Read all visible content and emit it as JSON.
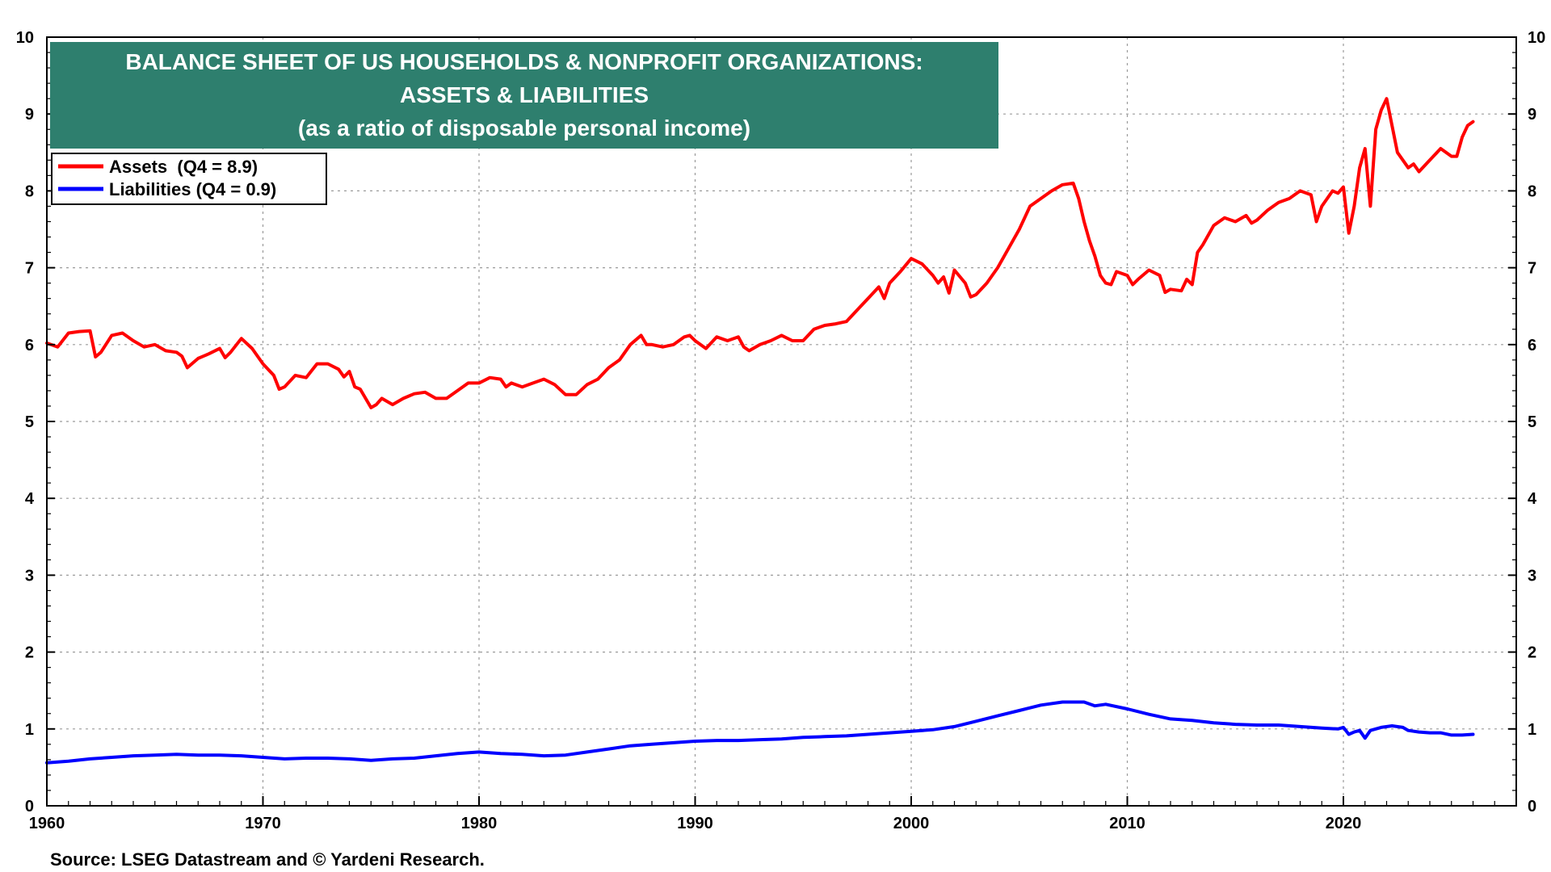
{
  "chart_data": {
    "type": "line",
    "title_lines": [
      "BALANCE SHEET OF US HOUSEHOLDS & NONPROFIT ORGANIZATIONS:",
      "ASSETS & LIABILITIES",
      "(as a ratio of disposable personal income)"
    ],
    "title_bg_color": "#2e7f6e",
    "xlim": [
      1960,
      2028
    ],
    "ylim": [
      0,
      10
    ],
    "x_ticks": [
      "1960",
      "1970",
      "1980",
      "1990",
      "2000",
      "2010",
      "2020"
    ],
    "y_ticks": [
      "0",
      "1",
      "2",
      "3",
      "4",
      "5",
      "6",
      "7",
      "8",
      "9",
      "10"
    ],
    "grid": true,
    "legend_position": "top-left",
    "source": "Source: LSEG Datastream and © Yardeni Research.",
    "series": [
      {
        "name": "Assets  (Q4 = 8.9)",
        "color": "#ff0000",
        "points": [
          [
            1960.0,
            6.02
          ],
          [
            1960.5,
            5.97
          ],
          [
            1961.0,
            6.15
          ],
          [
            1961.5,
            6.17
          ],
          [
            1962.0,
            6.18
          ],
          [
            1962.25,
            5.84
          ],
          [
            1962.5,
            5.9
          ],
          [
            1963.0,
            6.12
          ],
          [
            1963.5,
            6.15
          ],
          [
            1964.0,
            6.05
          ],
          [
            1964.5,
            5.97
          ],
          [
            1965.0,
            6.0
          ],
          [
            1965.5,
            5.92
          ],
          [
            1966.0,
            5.9
          ],
          [
            1966.25,
            5.85
          ],
          [
            1966.5,
            5.7
          ],
          [
            1967.0,
            5.82
          ],
          [
            1967.5,
            5.88
          ],
          [
            1968.0,
            5.95
          ],
          [
            1968.25,
            5.83
          ],
          [
            1968.5,
            5.9
          ],
          [
            1969.0,
            6.08
          ],
          [
            1969.5,
            5.95
          ],
          [
            1970.0,
            5.75
          ],
          [
            1970.5,
            5.6
          ],
          [
            1970.75,
            5.42
          ],
          [
            1971.0,
            5.45
          ],
          [
            1971.5,
            5.6
          ],
          [
            1972.0,
            5.57
          ],
          [
            1972.5,
            5.75
          ],
          [
            1973.0,
            5.75
          ],
          [
            1973.5,
            5.68
          ],
          [
            1973.75,
            5.58
          ],
          [
            1974.0,
            5.65
          ],
          [
            1974.25,
            5.45
          ],
          [
            1974.5,
            5.42
          ],
          [
            1975.0,
            5.18
          ],
          [
            1975.25,
            5.22
          ],
          [
            1975.5,
            5.3
          ],
          [
            1976.0,
            5.22
          ],
          [
            1976.5,
            5.3
          ],
          [
            1977.0,
            5.36
          ],
          [
            1977.5,
            5.38
          ],
          [
            1978.0,
            5.3
          ],
          [
            1978.5,
            5.3
          ],
          [
            1979.0,
            5.4
          ],
          [
            1979.5,
            5.5
          ],
          [
            1980.0,
            5.5
          ],
          [
            1980.5,
            5.57
          ],
          [
            1981.0,
            5.55
          ],
          [
            1981.25,
            5.45
          ],
          [
            1981.5,
            5.5
          ],
          [
            1982.0,
            5.45
          ],
          [
            1982.5,
            5.5
          ],
          [
            1983.0,
            5.55
          ],
          [
            1983.5,
            5.48
          ],
          [
            1984.0,
            5.35
          ],
          [
            1984.5,
            5.35
          ],
          [
            1985.0,
            5.48
          ],
          [
            1985.5,
            5.55
          ],
          [
            1986.0,
            5.7
          ],
          [
            1986.5,
            5.8
          ],
          [
            1987.0,
            6.0
          ],
          [
            1987.5,
            6.12
          ],
          [
            1987.75,
            6.0
          ],
          [
            1988.0,
            6.0
          ],
          [
            1988.5,
            5.97
          ],
          [
            1989.0,
            6.0
          ],
          [
            1989.5,
            6.1
          ],
          [
            1989.75,
            6.12
          ],
          [
            1990.0,
            6.05
          ],
          [
            1990.5,
            5.95
          ],
          [
            1991.0,
            6.1
          ],
          [
            1991.5,
            6.05
          ],
          [
            1992.0,
            6.1
          ],
          [
            1992.25,
            5.97
          ],
          [
            1992.5,
            5.92
          ],
          [
            1993.0,
            6.0
          ],
          [
            1993.5,
            6.05
          ],
          [
            1994.0,
            6.12
          ],
          [
            1994.5,
            6.05
          ],
          [
            1995.0,
            6.05
          ],
          [
            1995.5,
            6.2
          ],
          [
            1996.0,
            6.25
          ],
          [
            1996.5,
            6.27
          ],
          [
            1997.0,
            6.3
          ],
          [
            1997.5,
            6.45
          ],
          [
            1998.0,
            6.6
          ],
          [
            1998.5,
            6.75
          ],
          [
            1998.75,
            6.6
          ],
          [
            1999.0,
            6.8
          ],
          [
            1999.5,
            6.95
          ],
          [
            2000.0,
            7.12
          ],
          [
            2000.5,
            7.05
          ],
          [
            2001.0,
            6.9
          ],
          [
            2001.25,
            6.8
          ],
          [
            2001.5,
            6.88
          ],
          [
            2001.75,
            6.67
          ],
          [
            2002.0,
            6.97
          ],
          [
            2002.5,
            6.8
          ],
          [
            2002.75,
            6.62
          ],
          [
            2003.0,
            6.65
          ],
          [
            2003.5,
            6.8
          ],
          [
            2004.0,
            7.0
          ],
          [
            2004.5,
            7.25
          ],
          [
            2005.0,
            7.5
          ],
          [
            2005.5,
            7.8
          ],
          [
            2006.0,
            7.9
          ],
          [
            2006.5,
            8.0
          ],
          [
            2007.0,
            8.08
          ],
          [
            2007.5,
            8.1
          ],
          [
            2007.75,
            7.9
          ],
          [
            2008.0,
            7.6
          ],
          [
            2008.25,
            7.35
          ],
          [
            2008.5,
            7.15
          ],
          [
            2008.75,
            6.9
          ],
          [
            2009.0,
            6.8
          ],
          [
            2009.25,
            6.78
          ],
          [
            2009.5,
            6.95
          ],
          [
            2010.0,
            6.9
          ],
          [
            2010.25,
            6.78
          ],
          [
            2010.5,
            6.85
          ],
          [
            2011.0,
            6.97
          ],
          [
            2011.5,
            6.9
          ],
          [
            2011.75,
            6.68
          ],
          [
            2012.0,
            6.72
          ],
          [
            2012.5,
            6.7
          ],
          [
            2012.75,
            6.85
          ],
          [
            2013.0,
            6.78
          ],
          [
            2013.25,
            7.2
          ],
          [
            2013.5,
            7.3
          ],
          [
            2014.0,
            7.55
          ],
          [
            2014.5,
            7.65
          ],
          [
            2015.0,
            7.6
          ],
          [
            2015.5,
            7.68
          ],
          [
            2015.75,
            7.58
          ],
          [
            2016.0,
            7.62
          ],
          [
            2016.5,
            7.75
          ],
          [
            2017.0,
            7.85
          ],
          [
            2017.5,
            7.9
          ],
          [
            2018.0,
            8.0
          ],
          [
            2018.5,
            7.95
          ],
          [
            2018.75,
            7.6
          ],
          [
            2019.0,
            7.8
          ],
          [
            2019.5,
            8.0
          ],
          [
            2019.75,
            7.97
          ],
          [
            2020.0,
            8.05
          ],
          [
            2020.25,
            7.45
          ],
          [
            2020.5,
            7.8
          ],
          [
            2020.75,
            8.3
          ],
          [
            2021.0,
            8.55
          ],
          [
            2021.25,
            7.8
          ],
          [
            2021.5,
            8.8
          ],
          [
            2021.75,
            9.05
          ],
          [
            2022.0,
            9.2
          ],
          [
            2022.25,
            8.85
          ],
          [
            2022.5,
            8.5
          ],
          [
            2023.0,
            8.3
          ],
          [
            2023.25,
            8.35
          ],
          [
            2023.5,
            8.25
          ],
          [
            2024.0,
            8.4
          ],
          [
            2024.5,
            8.55
          ],
          [
            2025.0,
            8.45
          ],
          [
            2025.25,
            8.45
          ],
          [
            2025.5,
            8.7
          ],
          [
            2025.75,
            8.85
          ],
          [
            2026.0,
            8.9
          ]
        ]
      },
      {
        "name": "Liabilities (Q4 = 0.9)",
        "color": "#0000ff",
        "points": [
          [
            1960.0,
            0.56
          ],
          [
            1961.0,
            0.58
          ],
          [
            1962.0,
            0.61
          ],
          [
            1963.0,
            0.63
          ],
          [
            1964.0,
            0.65
          ],
          [
            1965.0,
            0.66
          ],
          [
            1966.0,
            0.67
          ],
          [
            1967.0,
            0.66
          ],
          [
            1968.0,
            0.66
          ],
          [
            1969.0,
            0.65
          ],
          [
            1970.0,
            0.63
          ],
          [
            1971.0,
            0.61
          ],
          [
            1972.0,
            0.62
          ],
          [
            1973.0,
            0.62
          ],
          [
            1974.0,
            0.61
          ],
          [
            1975.0,
            0.59
          ],
          [
            1976.0,
            0.61
          ],
          [
            1977.0,
            0.62
          ],
          [
            1978.0,
            0.65
          ],
          [
            1979.0,
            0.68
          ],
          [
            1980.0,
            0.7
          ],
          [
            1981.0,
            0.68
          ],
          [
            1982.0,
            0.67
          ],
          [
            1983.0,
            0.65
          ],
          [
            1984.0,
            0.66
          ],
          [
            1985.0,
            0.7
          ],
          [
            1986.0,
            0.74
          ],
          [
            1987.0,
            0.78
          ],
          [
            1988.0,
            0.8
          ],
          [
            1989.0,
            0.82
          ],
          [
            1990.0,
            0.84
          ],
          [
            1991.0,
            0.85
          ],
          [
            1992.0,
            0.85
          ],
          [
            1993.0,
            0.86
          ],
          [
            1994.0,
            0.87
          ],
          [
            1995.0,
            0.89
          ],
          [
            1996.0,
            0.9
          ],
          [
            1997.0,
            0.91
          ],
          [
            1998.0,
            0.93
          ],
          [
            1999.0,
            0.95
          ],
          [
            2000.0,
            0.97
          ],
          [
            2001.0,
            0.99
          ],
          [
            2002.0,
            1.03
          ],
          [
            2003.0,
            1.1
          ],
          [
            2004.0,
            1.17
          ],
          [
            2005.0,
            1.24
          ],
          [
            2006.0,
            1.31
          ],
          [
            2007.0,
            1.35
          ],
          [
            2008.0,
            1.35
          ],
          [
            2008.5,
            1.3
          ],
          [
            2009.0,
            1.32
          ],
          [
            2010.0,
            1.26
          ],
          [
            2011.0,
            1.19
          ],
          [
            2012.0,
            1.13
          ],
          [
            2013.0,
            1.11
          ],
          [
            2014.0,
            1.08
          ],
          [
            2015.0,
            1.06
          ],
          [
            2016.0,
            1.05
          ],
          [
            2017.0,
            1.05
          ],
          [
            2018.0,
            1.03
          ],
          [
            2019.0,
            1.01
          ],
          [
            2019.75,
            1.0
          ],
          [
            2020.0,
            1.02
          ],
          [
            2020.25,
            0.93
          ],
          [
            2020.5,
            0.96
          ],
          [
            2020.75,
            0.98
          ],
          [
            2021.0,
            0.88
          ],
          [
            2021.25,
            0.98
          ],
          [
            2021.75,
            1.02
          ],
          [
            2022.25,
            1.04
          ],
          [
            2022.75,
            1.02
          ],
          [
            2023.0,
            0.98
          ],
          [
            2023.5,
            0.96
          ],
          [
            2024.0,
            0.95
          ],
          [
            2024.5,
            0.95
          ],
          [
            2025.0,
            0.92
          ],
          [
            2025.5,
            0.92
          ],
          [
            2026.0,
            0.93
          ]
        ]
      }
    ]
  }
}
